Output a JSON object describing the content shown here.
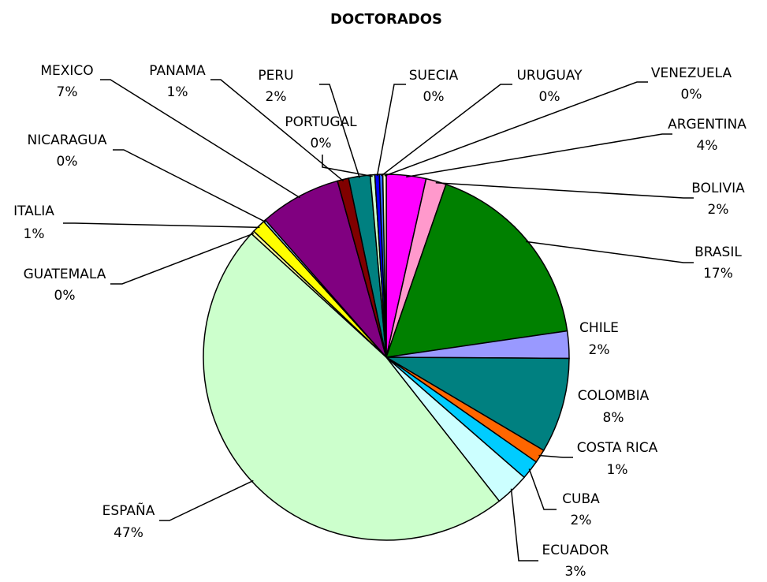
{
  "chart_data": {
    "type": "pie",
    "title": "DOCTORADOS",
    "categories": [
      "ARGENTINA",
      "BOLIVIA",
      "BRASIL",
      "CHILE",
      "COLOMBIA",
      "COSTA RICA",
      "CUBA",
      "ECUADOR",
      "ESPAÑA",
      "GUATEMALA",
      "ITALIA",
      "NICARAGUA",
      "MEXICO",
      "PANAMA",
      "PERU",
      "PORTUGAL",
      "SUECIA",
      "URUGUAY",
      "VENEZUELA"
    ],
    "values": [
      3.5,
      1.8,
      17.4,
      2.4,
      8.4,
      1.2,
      1.7,
      3.0,
      47.4,
      0.3,
      1.2,
      0.2,
      7.2,
      1.0,
      1.9,
      0.4,
      0.4,
      0.3,
      0.3
    ],
    "value_labels": [
      "4%",
      "2%",
      "17%",
      "2%",
      "8%",
      "1%",
      "2%",
      "3%",
      "47%",
      "0%",
      "1%",
      "0%",
      "7%",
      "1%",
      "2%",
      "0%",
      "0%",
      "0%",
      "0%"
    ],
    "colors": [
      "#ff00ff",
      "#ff99cc",
      "#008000",
      "#9999ff",
      "#008080",
      "#ff6600",
      "#00ccff",
      "#ccffff",
      "#ccffcc",
      "#ffff99",
      "#ffff00",
      "#99ccff",
      "#800080",
      "#800000",
      "#008080",
      "#ccffcc",
      "#0000ff",
      "#3366ff",
      "#ffffcc"
    ]
  }
}
